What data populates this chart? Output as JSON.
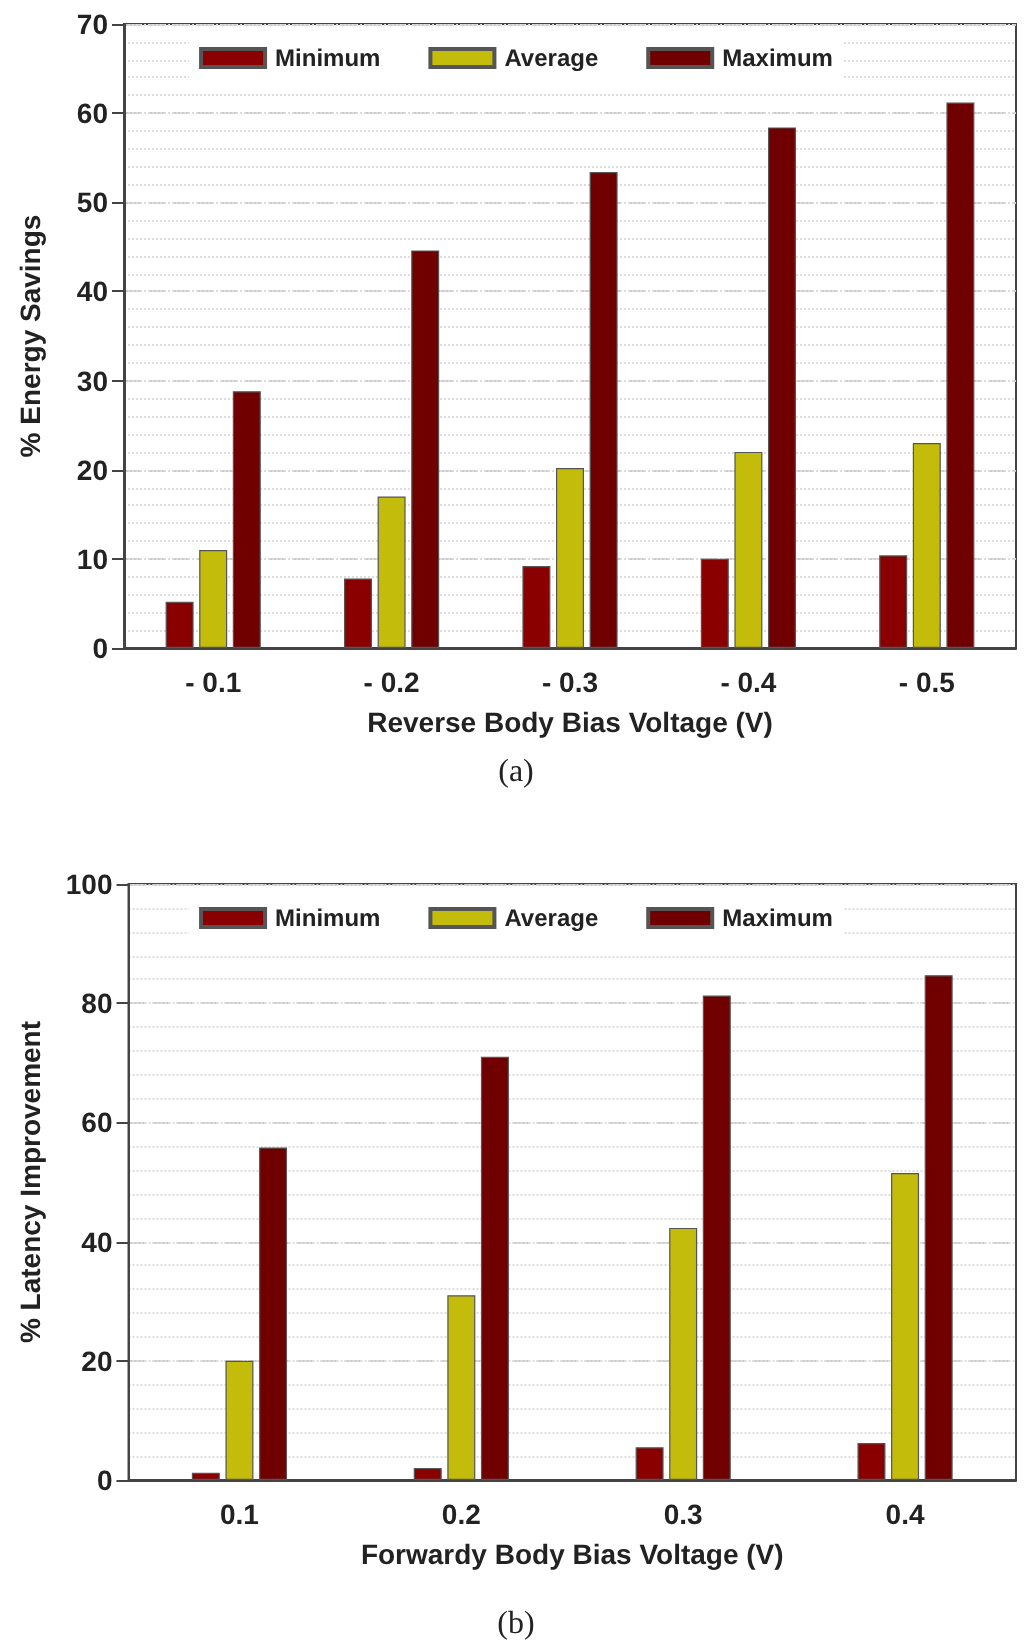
{
  "chart_data": [
    {
      "type": "bar",
      "xlabel": "Reverse Body Bias Voltage (V)",
      "ylabel": "% Energy Savings",
      "categories": [
        "- 0.1",
        "- 0.2",
        "- 0.3",
        "- 0.4",
        "- 0.5"
      ],
      "series": [
        {
          "name": "Minimum",
          "color": "#8a0000",
          "values": [
            5.2,
            7.8,
            9.2,
            10,
            10.4
          ]
        },
        {
          "name": "Average",
          "color": "#c4bc0a",
          "values": [
            11,
            17,
            20.2,
            22,
            23
          ]
        },
        {
          "name": "Maximum",
          "color": "#700000",
          "values": [
            28.8,
            44.6,
            53.4,
            58.4,
            61.2
          ]
        }
      ],
      "ylim": [
        0,
        70
      ],
      "yticks": [
        0,
        10,
        20,
        30,
        40,
        50,
        60,
        70
      ],
      "grid": "y",
      "legend": "top",
      "annotations": [
        "(a)"
      ]
    },
    {
      "type": "bar",
      "xlabel": "Forwardy Body Bias Voltage (V)",
      "ylabel": "% Latency Improvement",
      "categories": [
        "0.1",
        "0.2",
        "0.3",
        "0.4"
      ],
      "series": [
        {
          "name": "Minimum",
          "color": "#8a0000",
          "values": [
            1.2,
            2,
            5.5,
            6.2
          ]
        },
        {
          "name": "Average",
          "color": "#c4bc0a",
          "values": [
            20,
            31,
            42.3,
            51.5
          ]
        },
        {
          "name": "Maximum",
          "color": "#700000",
          "values": [
            55.8,
            71,
            81.3,
            84.7
          ]
        }
      ],
      "ylim": [
        0,
        100
      ],
      "yticks": [
        0,
        20,
        40,
        60,
        80,
        100
      ],
      "grid": "y",
      "legend": "top",
      "annotations": [
        "(b)"
      ]
    }
  ]
}
